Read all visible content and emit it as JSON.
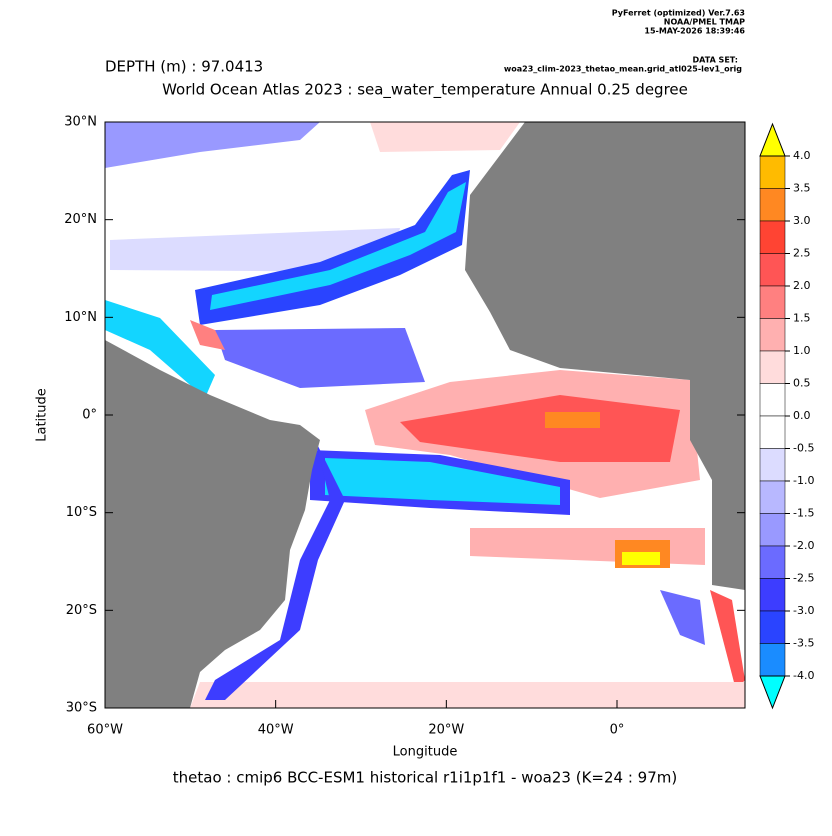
{
  "header": {
    "software": "PyFerret (optimized) Ver.7.63",
    "lab": "NOAA/PMEL TMAP",
    "timestamp": "15-MAY-2026 18:39:46",
    "dataset_label": "DATA SET:",
    "dataset": "woa23_clim-2023_thetao_mean.grid_atl025-lev1_orig"
  },
  "chart_data": {
    "type": "map",
    "depth_label": "DEPTH (m) : 97.0413",
    "title": "World Ocean Atlas 2023 : sea_water_temperature Annual  0.25 degree",
    "x_label": "Longitude",
    "y_label": "Latitude",
    "footer": "thetao : cmip6 BCC-ESM1 historical r1i1p1f1 - woa23  (K=24 : 97m)",
    "xlim": [
      -60,
      15
    ],
    "ylim": [
      -30,
      30
    ],
    "xticks": [
      {
        "value": -60,
        "label": "60°W"
      },
      {
        "value": -40,
        "label": "40°W"
      },
      {
        "value": -20,
        "label": "20°W"
      },
      {
        "value": 0,
        "label": "0°"
      }
    ],
    "yticks": [
      {
        "value": 30,
        "label": "30°N"
      },
      {
        "value": 20,
        "label": "20°N"
      },
      {
        "value": 10,
        "label": "10°N"
      },
      {
        "value": 0,
        "label": "0°"
      },
      {
        "value": -10,
        "label": "10°S"
      },
      {
        "value": -20,
        "label": "20°S"
      },
      {
        "value": -30,
        "label": "30°S"
      }
    ],
    "colorbar_lim": [
      -4,
      4
    ],
    "colorbar_ticks": [
      {
        "value": 4,
        "label": "4.0"
      },
      {
        "value": 3.5,
        "label": "3.5"
      },
      {
        "value": 3,
        "label": "3.0"
      },
      {
        "value": 2.5,
        "label": "2.5"
      },
      {
        "value": 2,
        "label": "2.0"
      },
      {
        "value": 1.5,
        "label": "1.5"
      },
      {
        "value": 1,
        "label": "1.0"
      },
      {
        "value": 0.5,
        "label": "0.5"
      },
      {
        "value": 0,
        "label": "0.0"
      },
      {
        "value": -0.5,
        "label": "-0.5"
      },
      {
        "value": -1,
        "label": "-1.0"
      },
      {
        "value": -1.5,
        "label": "-1.5"
      },
      {
        "value": -2,
        "label": "-2.0"
      },
      {
        "value": -2.5,
        "label": "-2.5"
      },
      {
        "value": -3,
        "label": "-3.0"
      },
      {
        "value": -3.5,
        "label": "-3.5"
      },
      {
        "value": -4,
        "label": "-4.0"
      }
    ],
    "colors": [
      "#ffbb00",
      "#ff8822",
      "#ff4433",
      "#ff5555",
      "#ff8080",
      "#ffb0b0",
      "#ffdcdc",
      "#ffffff",
      "#ffffff",
      "#dcdcff",
      "#b8b8ff",
      "#9999ff",
      "#6b6bff",
      "#3d3dff",
      "#2a44ff",
      "#1a8cff",
      "#13d5ff"
    ],
    "extend_colors": {
      "high": "#ffff00",
      "low": "#00ffff"
    },
    "land_color": "#808080"
  }
}
